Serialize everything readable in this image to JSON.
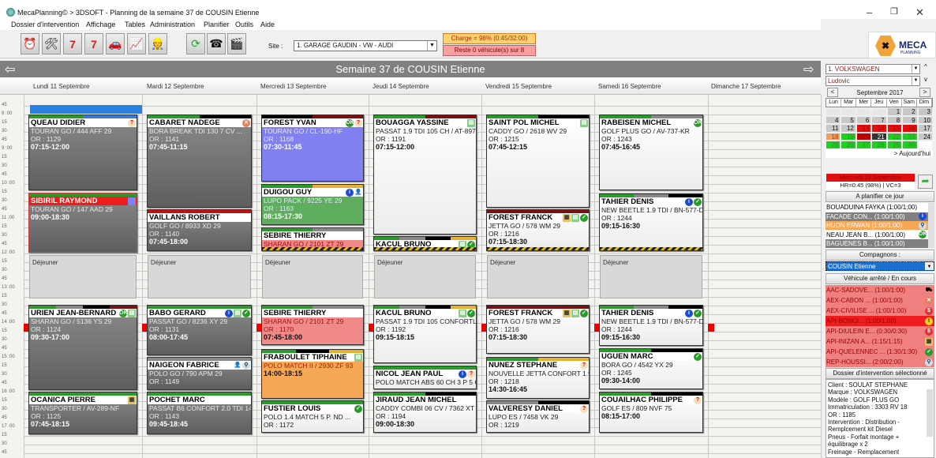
{
  "window": {
    "title": "MecaPlanning© > 3DSOFT  - Planning  de la semaine 37 de COUSIN Etienne",
    "minimize": "–",
    "maximize": "❐",
    "close": "✕"
  },
  "menu": [
    "Dossier d'intervention",
    "Affichage",
    "Tables",
    "Administration",
    "Planifier",
    "Outils",
    "Aide"
  ],
  "toolbar": {
    "icons": [
      "alarm-clock-icon",
      "tools-calendar-icon",
      "week-mechanic-icon",
      "week-7-icon",
      "car-calendar-icon",
      "search-chart-icon",
      "worker-calendar-icon",
      "refresh-icon",
      "phone-contact-icon",
      "clapperboard-icon"
    ],
    "site_label": "Site :",
    "site_value": "1. GARAGE GAUDIN - VW - AUDI",
    "charge": "Charge = 98% (0:45/32:00)",
    "reste": "Reste 0 véhicule(s) sur 8"
  },
  "logo": {
    "text": "MECA",
    "sub": "PLANNING"
  },
  "week": {
    "title": "Semaine 37 de COUSIN Etienne",
    "days": [
      "Lundi 11 Septembre",
      "Mardi 12 Septembre",
      "Mercredi 13 Septembre",
      "Jeudi 14 Septembre",
      "Vendredi 15 Septembre",
      "Samedi 16 Septembre",
      "Dimanche 17 Septembre"
    ]
  },
  "time_labels": [
    "45",
    "8 :00",
    "15",
    "30",
    "45",
    "9 :00",
    "15",
    "30",
    "45",
    "10 :00",
    "15",
    "30",
    "45",
    "11 :00",
    "15",
    "30",
    "45",
    "12 :00",
    "15",
    "30",
    "45",
    "13 :00",
    "15",
    "30",
    "45",
    "14 :00",
    "15",
    "30",
    "45",
    "15 :00",
    "15",
    "30",
    "45",
    "16 :00",
    "15",
    "30",
    "45",
    "17 :00",
    "15",
    "30",
    "45"
  ],
  "lunch_label": "Déjeuner",
  "colors": {
    "gray": "#808080",
    "white": "#ffffff",
    "purple": "#8080f0",
    "green": "#5fae5f",
    "pink": "#f08a8a",
    "orange": "#f7a857",
    "red": "#ee1c1c"
  },
  "events": [
    [
      {
        "name": "QUEAU DIDIER",
        "vehicle": "TOURAN GO / 444 AFF 29",
        "or": "OR : 1129",
        "time": "07:15-12:00",
        "color": "gray",
        "bar": [
          "#2a9a2a",
          "#3a7ad0"
        ],
        "icons": [
          "question-icon"
        ]
      },
      {
        "name": "SIBIRIL RAYMOND",
        "vehicle": "TOURAN GO / 147 AAD 29",
        "time": "09:00-18:30",
        "color": "gray",
        "header": "red",
        "bar": [
          "#2a9a2a"
        ],
        "icons": [
          "square-icon"
        ]
      },
      {
        "name": "URIEN JEAN-BERNARD",
        "vehicle": "SHARAN GO / 5136 YS 29",
        "or": "OR : 1124",
        "time": "09:30-17:00",
        "color": "gray",
        "bar": [
          "#2a9a2a",
          "#888",
          "#000",
          "#7a1010"
        ],
        "icons": [
          "ok-icon",
          "document-icon"
        ]
      },
      {
        "name": "OCANICA PIERRE",
        "vehicle": "TRANSPORTER / AV-289-NF",
        "or": "OR : 1125",
        "time": "07:45-18:15",
        "color": "gray",
        "bar": [
          "#2a9a2a"
        ],
        "icons": [
          "calendar-person-icon"
        ]
      }
    ],
    [
      {
        "name": "CABARET NADEGE",
        "vehicle": "BORA BREAK TDI 130      7 CV ...",
        "or": "OR : 1141",
        "time": "07:45-11:15",
        "color": "gray",
        "bar": [
          "#2a9a2a",
          "#000"
        ],
        "icons": [
          "cancel-icon"
        ]
      },
      {
        "name": "VAILLANS ROBERT",
        "vehicle": "GOLF GO / 8933 XD 29",
        "or": "OR : 1140",
        "time": "07:45-18:00",
        "color": "gray",
        "bar": [
          "#c01010"
        ],
        "icons": []
      },
      {
        "name": "BABO GERARD",
        "vehicle": "PASSAT GO / 8236 XY 29",
        "or": "OR : 1131",
        "time": "08:00-17:45",
        "color": "gray",
        "bar": [
          "#2a9a2a"
        ],
        "icons": [
          "info-icon",
          "document-icon",
          "check-icon"
        ]
      },
      {
        "name": "NAIGEON FABRICE",
        "vehicle": "POLO GO / 790 APM 29",
        "or": "OR : 1149",
        "color": "gray",
        "bar": [
          "#888"
        ],
        "icons": [
          "person-icon",
          "magnifier-icon"
        ]
      },
      {
        "name": "POCHET MARC",
        "vehicle": "PASSAT B6 CONFORT 2.0 TDI 14...",
        "or": "OR : 1143",
        "time": "09:45-18:45",
        "color": "gray",
        "bar": [
          "#2a9a2a"
        ],
        "icons": []
      }
    ],
    [
      {
        "name": "FOREST YVAN",
        "vehicle": "TOURAN GO / CL-190-HF",
        "or": "OR : 1168",
        "time": "07:30-11:45",
        "color": "purple",
        "bar": [
          "#000",
          "#7a1010"
        ],
        "icons": [
          "ok-icon",
          "question-icon"
        ]
      },
      {
        "name": "DUIGOU GUY",
        "vehicle": "LUPO PACK   / 9225 YE 29",
        "or": "OR : 1163",
        "time": "08:15-17:30",
        "color": "green",
        "bar": [
          "#2a9a2a",
          "#e8b030"
        ],
        "icons": [
          "info-icon",
          "person-icon"
        ]
      },
      {
        "name": "SEBIRE THIERRY",
        "vehicle": "SHARAN GO / 2101 ZT 29",
        "color": "pink",
        "bar": [
          "#2a9a2a",
          "#888"
        ],
        "icons": [],
        "stripe": true
      },
      {
        "name": "SEBIRE THIERRY",
        "vehicle": "SHARAN GO / 2101 ZT 29",
        "or": "OR : 1170",
        "time": "07:45-18:00",
        "color": "pink",
        "bar": [
          "#2a9a2a",
          "#888"
        ],
        "icons": []
      },
      {
        "name": "FRABOULET TIPHAINE",
        "vehicle": "POLO MATCH II / 2930 ZF 93",
        "time": "14:00-18:15",
        "color": "orange",
        "bar": [
          "#2a9a2a",
          "#000",
          "#e8b030"
        ],
        "icons": [
          "document-icon"
        ]
      },
      {
        "name": "FUSTIER LOUIS",
        "vehicle": "POLO    1.4  MATCH     5 P.      ND ...",
        "or": "OR : 1172",
        "color": "white",
        "bar": [
          "#2a9a2a"
        ],
        "icons": [
          "check-icon"
        ]
      }
    ],
    [
      {
        "name": "BOUAGGA YASSINE",
        "vehicle": "PASSAT 1.9 TDI 105 CH / AT-897...",
        "or": "OR : 1191",
        "time": "07:15-12:00",
        "color": "white",
        "bar": [
          "#2a9a2a",
          "#7a1010"
        ],
        "icons": [
          "document-icon"
        ]
      },
      {
        "name": "KACUL BRUNO",
        "color": "white",
        "bar": [
          "#2a9a2a",
          "#888",
          "#000",
          "#e8b030"
        ],
        "icons": [
          "document-icon",
          "check-icon"
        ],
        "stripe": true
      },
      {
        "name": "KACUL BRUNO",
        "vehicle": "PASSAT 1.9 TDI 105 CONFORTLI...",
        "or": "OR : 1192",
        "time": "09:15-18:15",
        "color": "white",
        "bar": [
          "#2a9a2a",
          "#888",
          "#000",
          "#e8b030"
        ],
        "icons": [
          "document-icon",
          "check-icon"
        ]
      },
      {
        "name": "NICOL JEAN PAUL",
        "vehicle": "POLO MATCH ABS 60 CH  3 P 5 C...",
        "color": "white",
        "bar": [
          "#2a9a2a"
        ],
        "icons": [
          "info-icon",
          "question-icon"
        ]
      },
      {
        "name": "JIRAUD JEAN MICHEL",
        "vehicle": "CADDY COMBI 06 CV / 7362 XT 29",
        "or": "OR : 1194",
        "time": "09:00-18:30",
        "color": "white",
        "bar": [
          "#2a9a2a",
          "#000"
        ],
        "icons": []
      }
    ],
    [
      {
        "name": "SAINT POL MICHEL",
        "vehicle": "CADDY GO / 2618 WV 29",
        "or": "OR : 1215",
        "time": "07:45-12:15",
        "color": "white",
        "bar": [
          "#2a9a2a",
          "#000"
        ],
        "icons": [
          "document-icon"
        ]
      },
      {
        "name": "FOREST FRANCK",
        "vehicle": "JETTA GO / 578 WM 29",
        "or": "OR : 1216",
        "time": "07:15-18:30",
        "color": "white",
        "bar": [
          "#7a1010"
        ],
        "icons": [
          "calendar-person-icon",
          "document-icon",
          "check-icon"
        ],
        "stripe": true
      },
      {
        "name": "FOREST FRANCK",
        "vehicle": "JETTA GO / 578 WM 29",
        "or": "OR : 1216",
        "time": "07:15-18:30",
        "color": "white",
        "bar": [
          "#7a1010"
        ],
        "icons": [
          "calendar-person-icon",
          "document-icon",
          "check-icon"
        ]
      },
      {
        "name": "NUNEZ STEPHANE",
        "vehicle": "NOUVELLE JETTA CONFORT 1.9...",
        "or": "OR : 1218",
        "time": "14:30-16:45",
        "color": "white",
        "bar": [
          "#2a9a2a",
          "#e8b030"
        ],
        "icons": [
          "question-icon"
        ]
      },
      {
        "name": "VALVERESY DANIEL",
        "vehicle": "LUPO ES / 7458 VK 29",
        "or": "OR : 1219",
        "color": "white",
        "bar": [
          "#888",
          "#000"
        ],
        "icons": [
          "question-icon"
        ]
      }
    ],
    [
      {
        "name": "RABEISEN MICHEL",
        "vehicle": "GOLF PLUS GO / AV-737-KR",
        "or": "OR : 1243",
        "time": "07:45-16:45",
        "color": "white",
        "bar": [
          "#2a9a2a",
          "#888"
        ],
        "icons": [
          "ok-icon"
        ]
      },
      {
        "name": "TAHIER DENIS",
        "vehicle": "NEW BEETLE 1.9 TDI / BN-577-DP",
        "or": "OR : 1244",
        "time": "09:15-16:30",
        "color": "white",
        "bar": [
          "#2a9a2a",
          "#888",
          "#000"
        ],
        "icons": [
          "info-icon",
          "check-icon"
        ],
        "stripe": true
      },
      {
        "name": "TAHIER DENIS",
        "vehicle": "NEW BEETLE 1.9 TDI / BN-577-DP",
        "or": "OR : 1244",
        "time": "09:15-16:30",
        "color": "white",
        "bar": [
          "#2a9a2a",
          "#888",
          "#000"
        ],
        "icons": [
          "info-icon",
          "check-icon"
        ]
      },
      {
        "name": "UGUEN  MARC",
        "vehicle": "BORA GO / 4542 YX 29",
        "or": "OR : 1245",
        "time": "09:30-14:00",
        "color": "white",
        "bar": [
          "#2a9a2a",
          "#000"
        ],
        "icons": [
          "check-icon"
        ]
      },
      {
        "name": "COUAILHAC PHILIPPE",
        "vehicle": "GOLF ES / 809 NVF 75",
        "time": "08:15-17:00",
        "color": "white",
        "bar": [
          "#2a9a2a",
          "#000"
        ],
        "icons": [
          "question-icon"
        ]
      }
    ],
    []
  ],
  "panel": {
    "brand": "1. VOLKSWAGEN",
    "user": "Ludovic",
    "month": "Septembre 2017",
    "prev": "<",
    "next": ">",
    "weekdays": [
      "Lun",
      "Mar",
      "Mer",
      "Jeu",
      "Ven",
      "Sam",
      "Dim"
    ],
    "days": [
      [
        "",
        "",
        "",
        "",
        "1",
        "2",
        "3"
      ],
      [
        "4",
        "5",
        "6",
        "7",
        "8",
        "9",
        "10"
      ],
      [
        "11",
        "12",
        "13",
        "14",
        "15",
        "16",
        "17"
      ],
      [
        "18",
        "19",
        "20",
        "21",
        "22",
        "23",
        "24"
      ],
      [
        "25",
        "26",
        "27",
        "28",
        "29",
        "30",
        ""
      ]
    ],
    "day_colors": {
      "13": "#e01010",
      "14": "#e01010",
      "15": "#e01010",
      "16": "#e01010",
      "18": "#f0a060",
      "19": "#20d020",
      "20": "#c00000",
      "21": "#333333",
      "22": "#20d020",
      "23": "#20d020",
      "25": "#20d020",
      "26": "#20d020",
      "27": "#20d020",
      "28": "#20d020",
      "29": "#20d020",
      "30": "#20d020"
    },
    "today": "> Aujourd'hui",
    "selected_day": "Mercredi 13 Septembre",
    "hr": "HR=0:45 (98%) | VC=3",
    "a_planifier_title": "A planifier ce jour",
    "a_planifier": [
      {
        "text": "BOUADUINA FAYKA (1:00/1:00)",
        "bg": "#ffffff",
        "fg": "#000"
      },
      {
        "text": "FACADE CON... (1:00/1:00)",
        "bg": "#808080",
        "fg": "#fff",
        "icon": "info-icon"
      },
      {
        "text": "HUON ERWAN (1:00/1:00)",
        "bg": "#f7a857",
        "fg": "#fff",
        "icon": "magnifier-icon"
      },
      {
        "text": "NEAU JEAN B... (1:00/1:00)",
        "bg": "#ffffff",
        "fg": "#000",
        "icon": "ok-icon"
      },
      {
        "text": "BAGUENES B... (1:00/1:00)",
        "bg": "#808080",
        "fg": "#fff"
      }
    ],
    "compagnons_title": "Compagnons :",
    "compagnon": "COUSIN Etienne",
    "arretes_title": "Véhicule arrêté / En cours",
    "arretes": [
      {
        "text": "AAC-SADOVE... (1:00/1:00)",
        "icon": "tow-truck-icon"
      },
      {
        "text": "AEX-CABON ... (1:00/1:00)",
        "icon": "cancel-icon"
      },
      {
        "text": "AEX-CIVILISE ... (1:00/1:00)",
        "icon": "euro-icon"
      },
      {
        "text": "API-BONCI... (1:00/1:00)",
        "icon": "warning-icon",
        "selected": true
      },
      {
        "text": "API-DIULEIN E... (0:30/0:30)",
        "icon": "euro-icon"
      },
      {
        "text": "API-INIZAN A... (1:15/1:15)",
        "icon": "calendar-person-icon"
      },
      {
        "text": "API-QUELENNEC ... (1:30/1:30)",
        "icon": "check-icon"
      },
      {
        "text": "REP-HOUSSI... (2:00/2:00)",
        "icon": "magnifier-icon"
      }
    ],
    "detail_title": "Dossier d'intervention sélectionné",
    "detail": [
      "Client : SOULAT STEPHANE",
      "Marque : VOLKSWAGEN",
      "Modèle : GOLF PLUS GO",
      "Immatriculation : 3303 RV 18",
      "OR : 1185",
      "Intervention : Distribution -",
      "Remplcement kit Diesel",
      "Pneus - Forfait montage +",
      "équilibrage x 2",
      "Freinage - Remplacement"
    ]
  }
}
